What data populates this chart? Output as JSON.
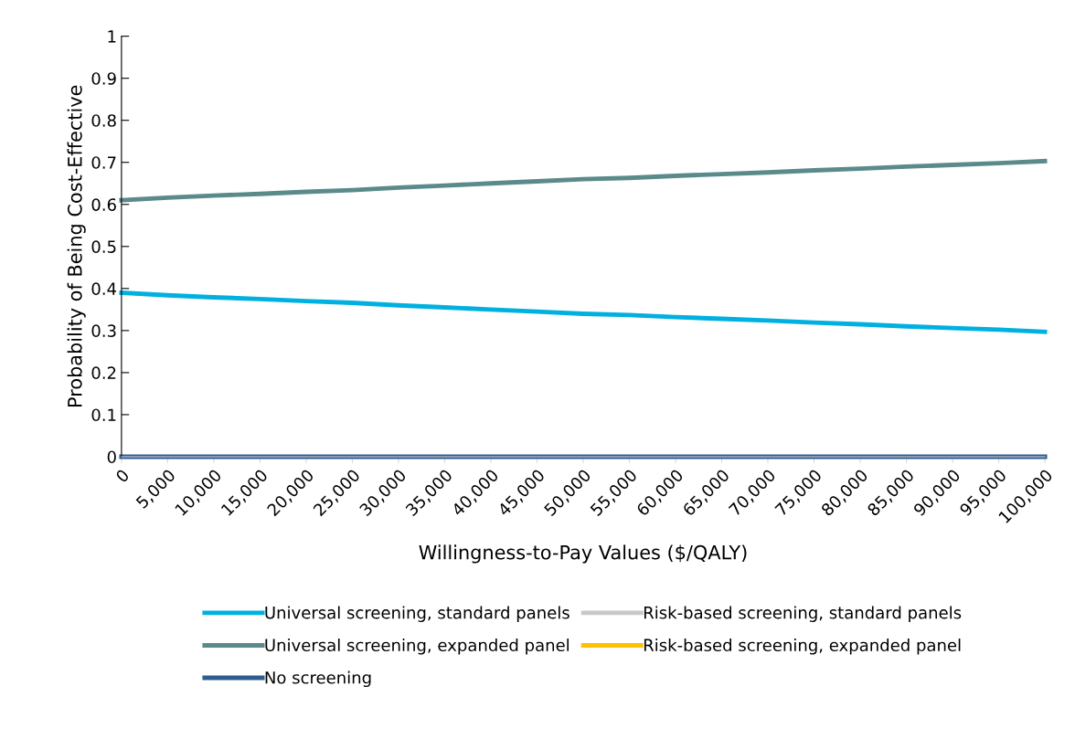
{
  "chart_data": {
    "type": "line",
    "xlabel": "Willingness-to-Pay Values ($/QALY)",
    "ylabel": "Probability of Being Cost-Effective",
    "categories": [
      "0",
      "5,000",
      "10,000",
      "15,000",
      "20,000",
      "25,000",
      "30,000",
      "35,000",
      "40,000",
      "45,000",
      "50,000",
      "55,000",
      "60,000",
      "65,000",
      "70,000",
      "75,000",
      "80,000",
      "85,000",
      "90,000",
      "95,000",
      "100,000"
    ],
    "series": [
      {
        "name": "Universal screening, standard panels",
        "color": "#00b0e0",
        "values": [
          0.39,
          0.384,
          0.379,
          0.375,
          0.37,
          0.366,
          0.36,
          0.355,
          0.35,
          0.345,
          0.34,
          0.337,
          0.332,
          0.328,
          0.324,
          0.319,
          0.315,
          0.31,
          0.306,
          0.302,
          0.297
        ]
      },
      {
        "name": "Risk-based screening, standard panels",
        "color": "#c8c8c8",
        "values": [
          null,
          null,
          null,
          null,
          null,
          null,
          null,
          null,
          null,
          null,
          null,
          null,
          null,
          null,
          null,
          null,
          null,
          null,
          null,
          null,
          null
        ]
      },
      {
        "name": "Universal screening, expanded panel",
        "color": "#5b8a8a",
        "values": [
          0.61,
          0.616,
          0.621,
          0.625,
          0.63,
          0.634,
          0.64,
          0.645,
          0.65,
          0.655,
          0.66,
          0.663,
          0.668,
          0.672,
          0.676,
          0.681,
          0.685,
          0.69,
          0.694,
          0.698,
          0.703
        ]
      },
      {
        "name": "Risk-based screening, expanded panel",
        "color": "#ffc000",
        "values": [
          null,
          null,
          null,
          null,
          null,
          null,
          null,
          null,
          null,
          null,
          null,
          null,
          null,
          null,
          null,
          null,
          null,
          null,
          null,
          null,
          null
        ]
      },
      {
        "name": "No screening",
        "color": "#2e5c8e",
        "values": [
          0,
          0,
          0,
          0,
          0,
          0,
          0,
          0,
          0,
          0,
          0,
          0,
          0,
          0,
          0,
          0,
          0,
          0,
          0,
          0,
          0
        ]
      }
    ],
    "ylim": [
      0,
      1
    ],
    "yticks": [
      0,
      0.1,
      0.2,
      0.3,
      0.4,
      0.5,
      0.6,
      0.7,
      0.8,
      0.9,
      1
    ],
    "grid": false,
    "legend": "bottom",
    "marker": "none",
    "line_style": "solid"
  }
}
